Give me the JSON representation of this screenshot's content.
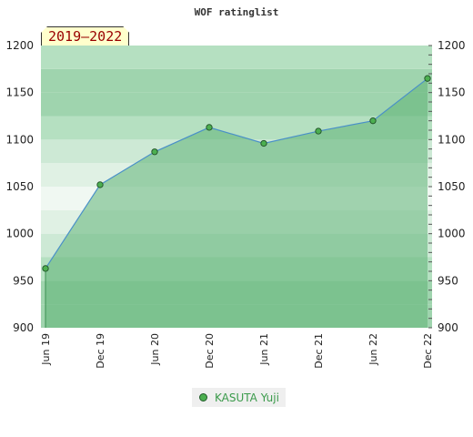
{
  "chart_data": {
    "type": "area",
    "title": "WOF ratinglist",
    "period": "2019–2022",
    "x": [
      "Jun 19",
      "Dec 19",
      "Jun 20",
      "Dec 20",
      "Jun 21",
      "Dec 21",
      "Jun 22",
      "Dec 22"
    ],
    "series": [
      {
        "name": "KASUTA Yuji",
        "values": [
          963,
          1052,
          1087,
          1113,
          1096,
          1109,
          1120,
          1165
        ]
      }
    ],
    "ylim": [
      900,
      1200
    ],
    "yticks": [
      900,
      950,
      1000,
      1050,
      1100,
      1150,
      1200
    ],
    "right_axis": true,
    "legend_position": "bottom",
    "colors": {
      "line": "#4a90c8",
      "area": "#8dcb9d",
      "marker": "#4caf50",
      "band_dark": "#9fd4ae",
      "band_light": "#f0f8f2"
    }
  }
}
